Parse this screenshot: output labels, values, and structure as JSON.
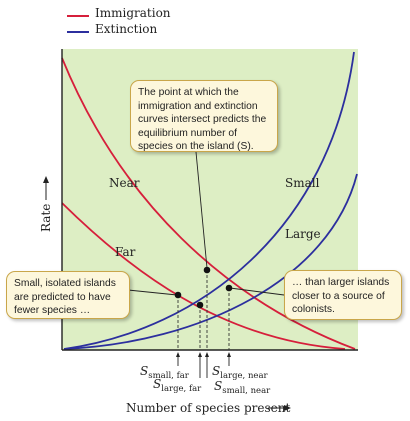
{
  "legend": {
    "items": [
      {
        "label": "Immigration",
        "color": "#d61f3b"
      },
      {
        "label": "Extinction",
        "color": "#2c2f9e"
      }
    ]
  },
  "colors": {
    "panel_background": "#ddeec4",
    "immigration": "#d61f3b",
    "extinction": "#2c2f9e",
    "callout_fill": "#fdf7dc",
    "callout_border": "#c9a64a"
  },
  "curve_labels": {
    "near": "Near",
    "far": "Far",
    "small": "Small",
    "large": "Large"
  },
  "axes": {
    "y_label": "Rate",
    "x_label": "Number of species present"
  },
  "callouts": {
    "top": "The point at which the immigration and extinction curves intersect predicts the equilibrium number of species on the island (S).",
    "left": "Small, isolated islands are predicted to have fewer species …",
    "right": "… than larger islands closer to a source of colonists."
  },
  "equilibria": [
    {
      "main": "S",
      "sub": "small, far"
    },
    {
      "main": "S",
      "sub": "large, far"
    },
    {
      "main": "S",
      "sub": "large, near"
    },
    {
      "main": "S",
      "sub": "small, near"
    }
  ]
}
